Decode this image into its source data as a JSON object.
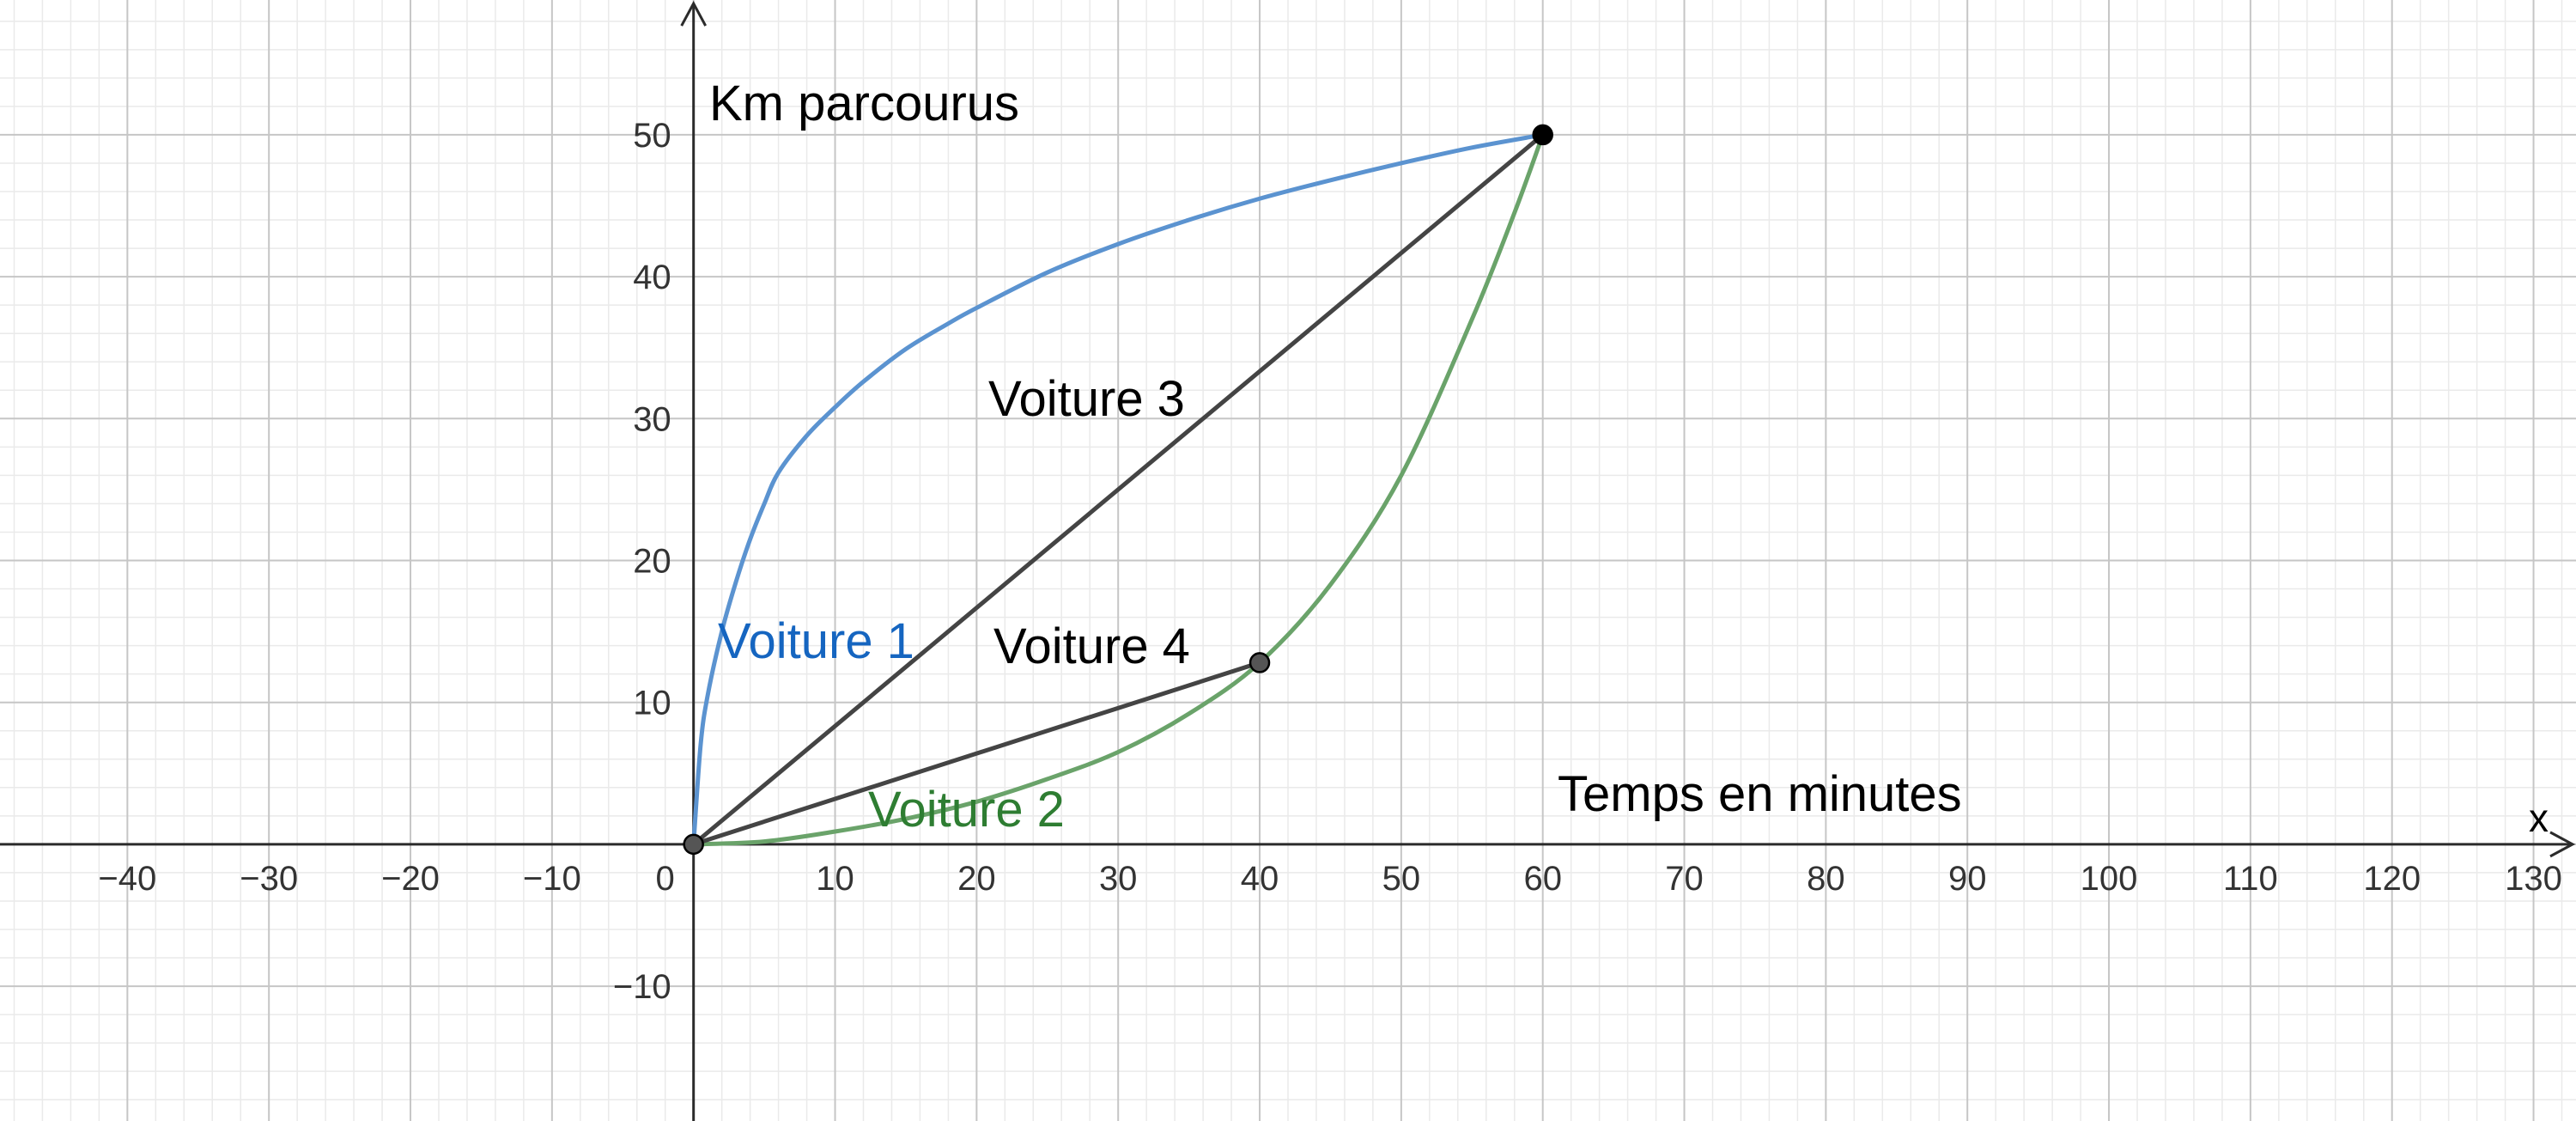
{
  "chart_data": {
    "type": "line",
    "title": "",
    "xlabel": "Temps en minutes",
    "ylabel": "Km parcourus",
    "x_axis_letter": "x",
    "xlim": [
      -49,
      133
    ],
    "ylim": [
      -19.5,
      59.5
    ],
    "grid": true,
    "x_ticks": [
      -40,
      -30,
      -20,
      -10,
      0,
      10,
      20,
      30,
      40,
      50,
      60,
      70,
      80,
      90,
      100,
      110,
      120,
      130
    ],
    "x_tick_labels": [
      "−40",
      "−30",
      "−20",
      "−10",
      "0",
      "10",
      "20",
      "30",
      "40",
      "50",
      "60",
      "70",
      "80",
      "90",
      "100",
      "110",
      "120",
      "130"
    ],
    "y_ticks": [
      -10,
      10,
      20,
      30,
      40,
      50
    ],
    "y_tick_labels": [
      "−10",
      "10",
      "20",
      "30",
      "40",
      "50"
    ],
    "series": [
      {
        "name": "Voiture 1",
        "kind": "curve",
        "color": "#5b93d0",
        "label_color": "#1565c0",
        "x": [
          0,
          0.5,
          1,
          2,
          3,
          4,
          5,
          6,
          8,
          10,
          12,
          15,
          18,
          20,
          25,
          30,
          35,
          40,
          45,
          50,
          55,
          60
        ],
        "y": [
          0,
          7,
          10.5,
          15,
          18.5,
          21.5,
          24,
          26.2,
          28.8,
          30.8,
          32.6,
          34.9,
          36.7,
          37.8,
          40.3,
          42.3,
          44,
          45.5,
          46.8,
          48,
          49.1,
          50
        ]
      },
      {
        "name": "Voiture 2",
        "kind": "curve",
        "color": "#6aa36a",
        "label_color": "#2e7d32",
        "x": [
          0,
          5,
          10,
          15,
          20,
          25,
          30,
          35,
          40,
          45,
          50,
          55,
          58,
          60
        ],
        "y": [
          0,
          0.2,
          0.9,
          1.8,
          3.0,
          4.6,
          6.5,
          9.2,
          12.8,
          18.3,
          26,
          37,
          44.5,
          50
        ]
      },
      {
        "name": "Voiture 3",
        "kind": "segment",
        "color": "#444444",
        "label_color": "#000000",
        "x": [
          0,
          60
        ],
        "y": [
          0,
          50
        ]
      },
      {
        "name": "Voiture 4",
        "kind": "segment",
        "color": "#444444",
        "label_color": "#000000",
        "x": [
          0,
          40
        ],
        "y": [
          0,
          12.8
        ]
      }
    ],
    "points": [
      {
        "x": 0,
        "y": 0,
        "fill": "#555555"
      },
      {
        "x": 60,
        "y": 50,
        "fill": "#000000"
      },
      {
        "x": 40,
        "y": 12.8,
        "fill": "#555555"
      }
    ]
  }
}
